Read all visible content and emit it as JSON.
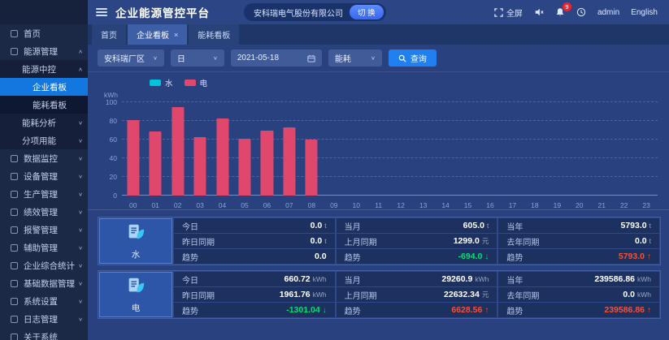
{
  "app": {
    "title": "企业能源管控平台",
    "company": "安科瑞电气股份有限公司",
    "switch": "切 换",
    "fullscreen": "全屏",
    "badge": "9",
    "user": "admin",
    "lang": "English"
  },
  "sidebar": {
    "items": [
      {
        "key": "home",
        "label": "首页",
        "level": 0,
        "arrow": ""
      },
      {
        "key": "energy-mgmt",
        "label": "能源管理",
        "level": 0,
        "arrow": "up"
      },
      {
        "key": "energy-center",
        "label": "能源中控",
        "level": 1,
        "arrow": "up"
      },
      {
        "key": "enterprise-board",
        "label": "企业看板",
        "level": 2,
        "active": true
      },
      {
        "key": "energy-board",
        "label": "能耗看板",
        "level": 2
      },
      {
        "key": "energy-analysis",
        "label": "能耗分析",
        "level": 1,
        "arrow": "down"
      },
      {
        "key": "subentry-energy",
        "label": "分项用能",
        "level": 1,
        "arrow": "down"
      },
      {
        "key": "data-monitor",
        "label": "数据监控",
        "level": 0,
        "arrow": "down"
      },
      {
        "key": "device-mgmt",
        "label": "设备管理",
        "level": 0,
        "arrow": "down"
      },
      {
        "key": "production-mgmt",
        "label": "生产管理",
        "level": 0,
        "arrow": "down"
      },
      {
        "key": "performance-mgmt",
        "label": "绩效管理",
        "level": 0,
        "arrow": "down"
      },
      {
        "key": "alarm-mgmt",
        "label": "报警管理",
        "level": 0,
        "arrow": "down"
      },
      {
        "key": "assist-mgmt",
        "label": "辅助管理",
        "level": 0,
        "arrow": "down"
      },
      {
        "key": "enterprise-stats",
        "label": "企业综合统计",
        "level": 0,
        "arrow": "down"
      },
      {
        "key": "base-data-mgmt",
        "label": "基础数据管理",
        "level": 0,
        "arrow": "down"
      },
      {
        "key": "system-settings",
        "label": "系统设置",
        "level": 0,
        "arrow": "down"
      },
      {
        "key": "log-mgmt",
        "label": "日志管理",
        "level": 0,
        "arrow": "down"
      },
      {
        "key": "about-system",
        "label": "关于系统",
        "level": 0,
        "arrow": ""
      }
    ]
  },
  "tabs": [
    {
      "key": "home",
      "label": "首页",
      "active": false,
      "closable": false
    },
    {
      "key": "enterprise-board",
      "label": "企业看板",
      "active": true,
      "closable": true
    },
    {
      "key": "energy-board",
      "label": "能耗看板",
      "active": false,
      "closable": false
    }
  ],
  "filters": {
    "area": "安科瑞厂区",
    "granularity": "日",
    "date": "2021-05-18",
    "metric": "能耗",
    "search": "查询"
  },
  "chart_data": {
    "type": "bar",
    "title": "",
    "xlabel": "",
    "ylabel": "kWh",
    "ylim": [
      0,
      100
    ],
    "yticks": [
      0,
      20,
      40,
      60,
      80,
      100
    ],
    "grid": "dashed-horizontal",
    "legend_position": "top-left",
    "x": [
      "00",
      "01",
      "02",
      "03",
      "04",
      "05",
      "06",
      "07",
      "08",
      "09",
      "10",
      "11",
      "12",
      "13",
      "14",
      "15",
      "16",
      "17",
      "18",
      "19",
      "20",
      "21",
      "22",
      "23"
    ],
    "series": [
      {
        "name": "水",
        "color": "#00c2d8",
        "values": [
          0,
          0,
          0,
          0,
          0,
          0,
          0,
          0,
          0,
          null,
          null,
          null,
          null,
          null,
          null,
          null,
          null,
          null,
          null,
          null,
          null,
          null,
          null,
          null
        ]
      },
      {
        "name": "电",
        "color": "#e0476d",
        "values": [
          81,
          69,
          95,
          63,
          83,
          61,
          70,
          73,
          60,
          null,
          null,
          null,
          null,
          null,
          null,
          null,
          null,
          null,
          null,
          null,
          null,
          null,
          null,
          null
        ]
      }
    ]
  },
  "cards": [
    {
      "key": "water",
      "name": "水",
      "icon": "water-report-icon",
      "rows": [
        [
          {
            "label": "今日",
            "value": "0.0",
            "unit": "t",
            "trend": ""
          },
          {
            "label": "当月",
            "value": "605.0",
            "unit": "t",
            "trend": ""
          },
          {
            "label": "当年",
            "value": "5793.0",
            "unit": "t",
            "trend": ""
          }
        ],
        [
          {
            "label": "昨日同期",
            "value": "0.0",
            "unit": "t",
            "trend": ""
          },
          {
            "label": "上月同期",
            "value": "1299.0",
            "unit": "元",
            "trend": ""
          },
          {
            "label": "去年同期",
            "value": "0.0",
            "unit": "t",
            "trend": ""
          }
        ],
        [
          {
            "label": "趋势",
            "value": "0.0",
            "unit": "",
            "trend": ""
          },
          {
            "label": "趋势",
            "value": "-694.0",
            "unit": "",
            "trend": "down"
          },
          {
            "label": "趋势",
            "value": "5793.0",
            "unit": "",
            "trend": "up"
          }
        ]
      ]
    },
    {
      "key": "electricity",
      "name": "电",
      "icon": "electricity-report-icon",
      "rows": [
        [
          {
            "label": "今日",
            "value": "660.72",
            "unit": "kWh",
            "trend": ""
          },
          {
            "label": "当月",
            "value": "29260.9",
            "unit": "kWh",
            "trend": ""
          },
          {
            "label": "当年",
            "value": "239586.86",
            "unit": "kWh",
            "trend": ""
          }
        ],
        [
          {
            "label": "昨日同期",
            "value": "1961.76",
            "unit": "kWh",
            "trend": ""
          },
          {
            "label": "上月同期",
            "value": "22632.34",
            "unit": "元",
            "trend": ""
          },
          {
            "label": "去年同期",
            "value": "0.0",
            "unit": "kWh",
            "trend": ""
          }
        ],
        [
          {
            "label": "趋势",
            "value": "-1301.04",
            "unit": "",
            "trend": "down"
          },
          {
            "label": "趋势",
            "value": "6628.56",
            "unit": "",
            "trend": "up"
          },
          {
            "label": "趋势",
            "value": "239586.86",
            "unit": "",
            "trend": "up"
          }
        ]
      ]
    }
  ]
}
